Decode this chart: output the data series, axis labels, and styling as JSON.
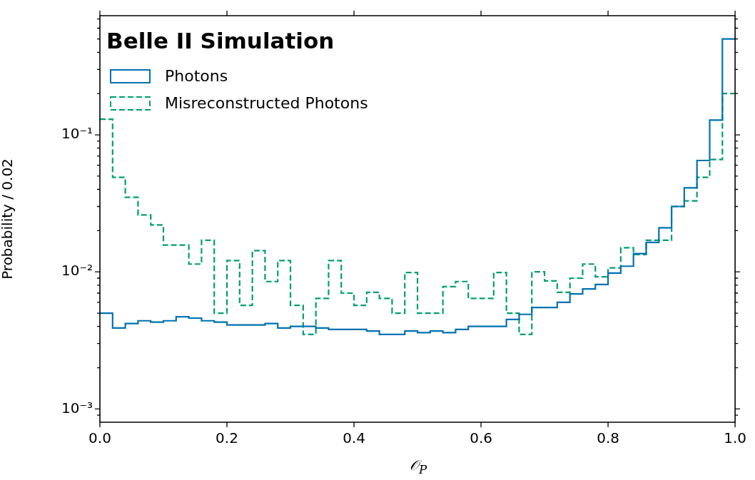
{
  "chart_data": {
    "type": "histogram",
    "title": "Belle II Simulation",
    "xlabel": "𝒪$_{P}$",
    "ylabel": "Probability / 0.02",
    "bins": [
      0,
      0.02,
      0.04,
      0.06,
      0.08,
      0.1,
      0.12,
      0.14,
      0.16,
      0.18,
      0.2,
      0.22,
      0.24,
      0.26,
      0.28,
      0.3,
      0.32,
      0.34,
      0.36,
      0.38,
      0.4,
      0.42,
      0.44,
      0.46,
      0.48,
      0.5,
      0.52,
      0.54,
      0.56,
      0.58,
      0.6,
      0.62,
      0.64,
      0.66,
      0.68,
      0.7,
      0.72,
      0.74,
      0.76,
      0.78,
      0.8,
      0.82,
      0.84,
      0.86,
      0.88,
      0.9,
      0.92,
      0.94,
      0.96,
      0.98,
      1
    ],
    "series": [
      {
        "name": "Photons",
        "color": "#0072b2",
        "line_style": "solid",
        "values": [
          0.005,
          0.0039,
          0.0042,
          0.0044,
          0.0043,
          0.0044,
          0.0047,
          0.0046,
          0.0044,
          0.0043,
          0.0041,
          0.0041,
          0.0041,
          0.0042,
          0.0039,
          0.004,
          0.004,
          0.0039,
          0.0038,
          0.0038,
          0.0038,
          0.0037,
          0.0035,
          0.0035,
          0.0037,
          0.0036,
          0.0037,
          0.0036,
          0.0038,
          0.004,
          0.004,
          0.004,
          0.0045,
          0.0049,
          0.0055,
          0.0055,
          0.006,
          0.0069,
          0.0075,
          0.0081,
          0.0098,
          0.011,
          0.0136,
          0.0164,
          0.021,
          0.03,
          0.041,
          0.065,
          0.128,
          0.5
        ]
      },
      {
        "name": "Misreconstructed Photons",
        "color": "#009e73",
        "line_style": "dashed",
        "values": [
          0.13,
          0.049,
          0.035,
          0.026,
          0.022,
          0.0157,
          0.0157,
          0.0114,
          0.017,
          0.005,
          0.0121,
          0.0057,
          0.0143,
          0.0085,
          0.0121,
          0.0057,
          0.0035,
          0.0064,
          0.0121,
          0.007,
          0.0057,
          0.0071,
          0.0064,
          0.005,
          0.0099,
          0.005,
          0.005,
          0.0078,
          0.0085,
          0.0064,
          0.0064,
          0.0099,
          0.005,
          0.0035,
          0.01,
          0.0086,
          0.0071,
          0.009,
          0.0114,
          0.0092,
          0.0107,
          0.015,
          0.0134,
          0.017,
          0.017,
          0.03,
          0.033,
          0.049,
          0.066,
          0.2
        ]
      }
    ],
    "log": "y",
    "xlim": [
      0,
      1
    ],
    "ylim": [
      0.0008,
      0.74
    ],
    "xticks": [
      {
        "value": 0,
        "label": "0.0"
      },
      {
        "value": 0.2,
        "label": "0.2"
      },
      {
        "value": 0.4,
        "label": "0.4"
      },
      {
        "value": 0.6,
        "label": "0.6"
      },
      {
        "value": 0.8,
        "label": "0.8"
      },
      {
        "value": 1,
        "label": "1.0"
      }
    ],
    "yticks": [
      {
        "value": 0.0009,
        "label": null
      },
      {
        "value": 0.001,
        "label": "10⁻³"
      },
      {
        "value": 0.002,
        "label": null
      },
      {
        "value": 0.003,
        "label": null
      },
      {
        "value": 0.004,
        "label": null
      },
      {
        "value": 0.005,
        "label": null
      },
      {
        "value": 0.006,
        "label": null
      },
      {
        "value": 0.007,
        "label": null
      },
      {
        "value": 0.008,
        "label": null
      },
      {
        "value": 0.009,
        "label": null
      },
      {
        "value": 0.01,
        "label": "10⁻²"
      },
      {
        "value": 0.02,
        "label": null
      },
      {
        "value": 0.03,
        "label": null
      },
      {
        "value": 0.04,
        "label": null
      },
      {
        "value": 0.05,
        "label": null
      },
      {
        "value": 0.06,
        "label": null
      },
      {
        "value": 0.07,
        "label": null
      },
      {
        "value": 0.08,
        "label": null
      },
      {
        "value": 0.09,
        "label": null
      },
      {
        "value": 0.1,
        "label": "10⁻¹"
      },
      {
        "value": 0.2,
        "label": null
      },
      {
        "value": 0.3,
        "label": null
      },
      {
        "value": 0.4,
        "label": null
      },
      {
        "value": 0.5,
        "label": null
      },
      {
        "value": 0.6,
        "label": null
      },
      {
        "value": 0.7,
        "label": null
      }
    ],
    "grid": false,
    "legend": "top left"
  }
}
